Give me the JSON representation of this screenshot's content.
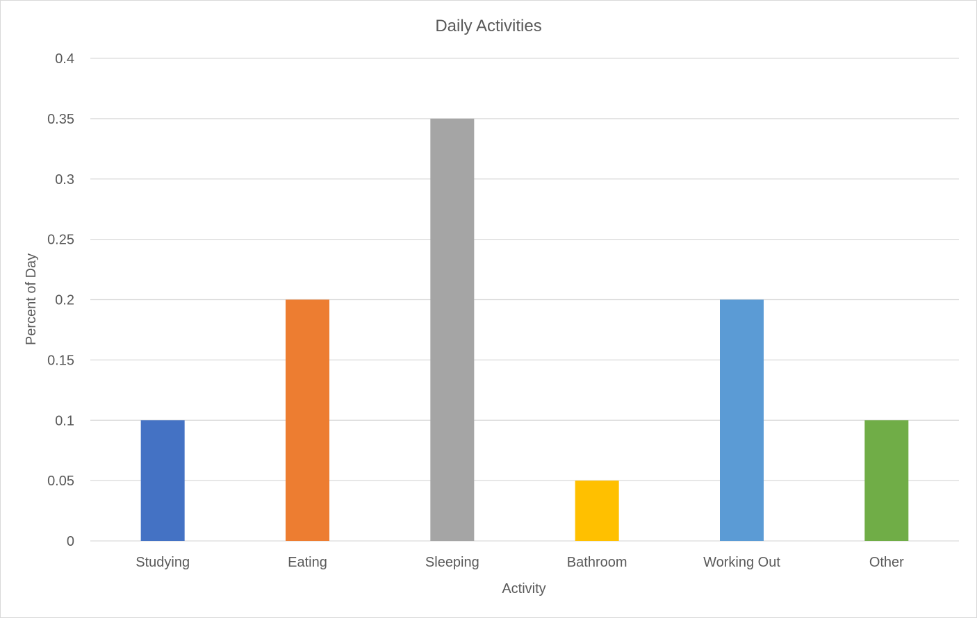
{
  "chart_data": {
    "type": "bar",
    "title": "Daily Activities",
    "xlabel": "Activity",
    "ylabel": "Percent of Day",
    "categories": [
      "Studying",
      "Eating",
      "Sleeping",
      "Bathroom",
      "Working Out",
      "Other"
    ],
    "values": [
      0.1,
      0.2,
      0.35,
      0.05,
      0.2,
      0.1
    ],
    "colors": [
      "#4472C4",
      "#ED7D31",
      "#A5A5A5",
      "#FFC000",
      "#5B9BD5",
      "#70AD47"
    ],
    "ylim": [
      0,
      0.4
    ],
    "yticks": [
      "0",
      "0.05",
      "0.1",
      "0.15",
      "0.2",
      "0.25",
      "0.3",
      "0.35",
      "0.4"
    ],
    "grid": true,
    "legend": "none"
  }
}
